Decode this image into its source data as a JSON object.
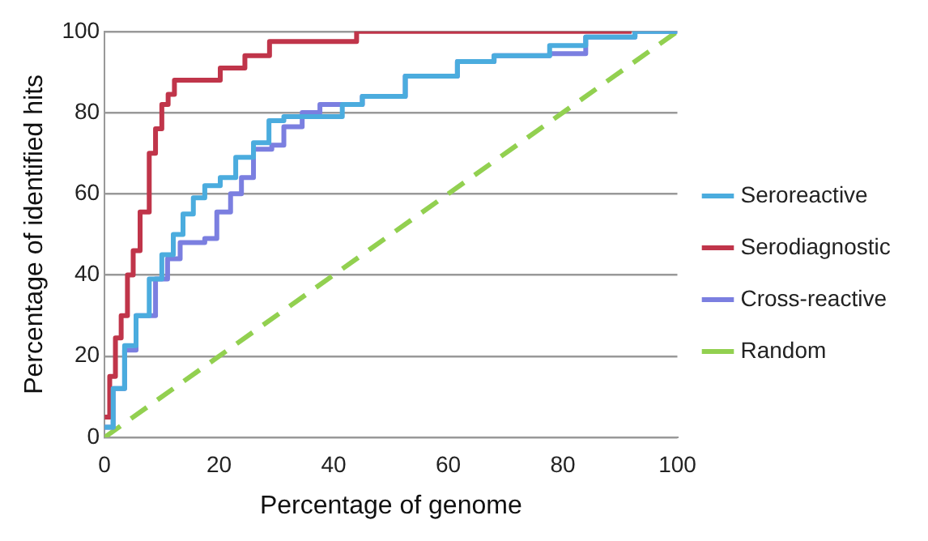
{
  "chart_data": {
    "type": "step",
    "xlabel": "Percentage of genome",
    "ylabel": "Percentage of identified hits",
    "xlim": [
      0,
      100
    ],
    "xticks": [
      0,
      20,
      40,
      60,
      80,
      100
    ],
    "ylim": [
      0,
      100
    ],
    "yticks": [
      0,
      20,
      40,
      60,
      80,
      100
    ],
    "grid": "y",
    "legend": "right",
    "marker": "none",
    "series": [
      {
        "name": "Seroreactive",
        "color": "#4bacde",
        "x": [
          0,
          1.5,
          3.5,
          5.5,
          7.8,
          10,
          12,
          13.7,
          15.5,
          17.5,
          20.2,
          22.9,
          26,
          28.7,
          31.3,
          40,
          41.5,
          45,
          52.5,
          61.6,
          68,
          77.7,
          82,
          84,
          92.6,
          100
        ],
        "values": [
          2.5,
          12,
          22.6,
          30,
          39,
          45,
          50,
          55,
          59,
          62,
          64,
          69,
          72.6,
          78,
          79,
          79,
          82,
          84,
          89,
          92.6,
          94,
          96.5,
          96.5,
          98.6,
          100,
          100
        ]
      },
      {
        "name": "Serodiagnostic",
        "color": "#c0354a",
        "x": [
          0,
          0.9,
          1.9,
          2.9,
          4,
          5,
          6.2,
          7.8,
          8.9,
          10,
          11.1,
          12.2,
          20.2,
          24.5,
          28.8,
          44,
          92
        ],
        "values": [
          5,
          15,
          24.5,
          30,
          40,
          46,
          55.5,
          70,
          76,
          82,
          84.5,
          88,
          91,
          94,
          97.5,
          100,
          100
        ]
      },
      {
        "name": "Cross-reactive",
        "color": "#7b7fe0",
        "x": [
          0,
          1.5,
          3.5,
          5.5,
          8.9,
          11,
          13.2,
          17.5,
          19.6,
          22,
          23.9,
          26,
          29.2,
          31.3,
          34.5,
          37.6,
          45,
          52.5,
          61.6,
          68,
          77.7,
          84,
          92.6,
          100
        ],
        "values": [
          2.5,
          12,
          21.5,
          30,
          39,
          44,
          48,
          49,
          55.5,
          60,
          64,
          71,
          72,
          76.5,
          80,
          82,
          84,
          89,
          92.6,
          94,
          94.5,
          98.6,
          100,
          100
        ]
      },
      {
        "name": "Random",
        "type": "line",
        "line_style": "dashed",
        "color": "#92d050",
        "x": [
          0,
          100
        ],
        "values": [
          0,
          100
        ]
      }
    ]
  }
}
